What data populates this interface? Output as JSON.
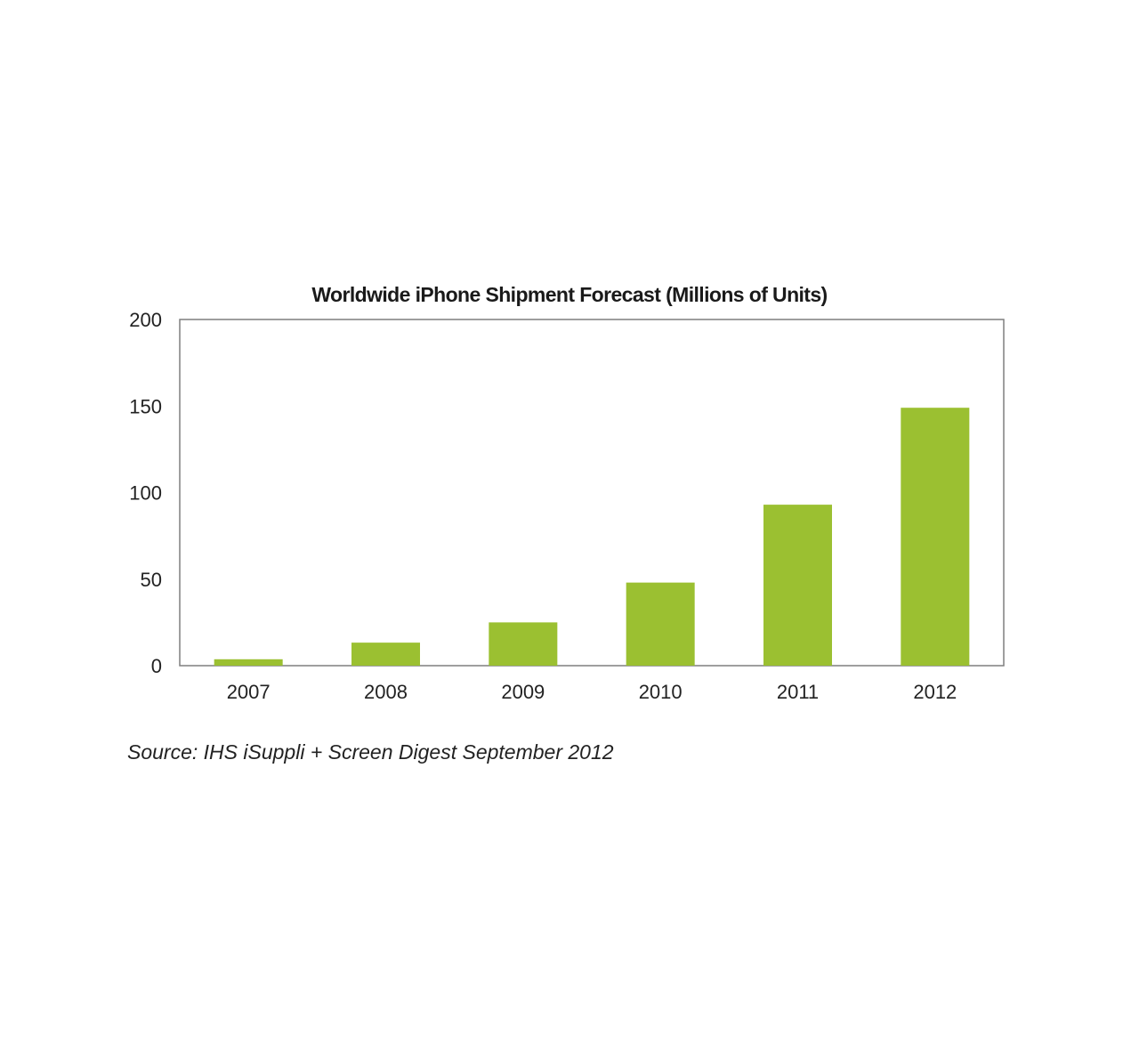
{
  "chart_data": {
    "type": "bar",
    "title": "Worldwide iPhone Shipment Forecast (Millions of Units)",
    "xlabel": "",
    "ylabel": "",
    "categories": [
      "2007",
      "2008",
      "2009",
      "2010",
      "2011",
      "2012"
    ],
    "values": [
      3.7,
      13.3,
      25,
      48,
      93,
      149
    ],
    "ylim": [
      0,
      200
    ],
    "yticks": [
      "0",
      "50",
      "100",
      "150",
      "200"
    ],
    "grid": false,
    "legend": "none",
    "bar_color": "#9bc031",
    "frame_color": "#7f7f7f"
  },
  "source": "Source: IHS iSuppli + Screen Digest September 2012"
}
